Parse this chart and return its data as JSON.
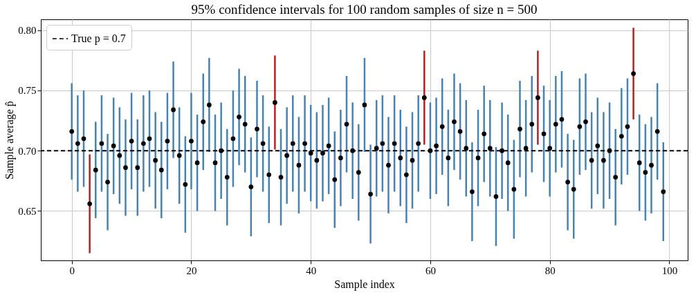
{
  "chart_data": {
    "type": "scatter",
    "title": "95% confidence intervals for 100 random samples of size n = 500",
    "xlabel": "Sample index",
    "ylabel": "Sample average p̂",
    "x": [
      0,
      1,
      2,
      3,
      4,
      5,
      6,
      7,
      8,
      9,
      10,
      11,
      12,
      13,
      14,
      15,
      16,
      17,
      18,
      19,
      20,
      21,
      22,
      23,
      24,
      25,
      26,
      27,
      28,
      29,
      30,
      31,
      32,
      33,
      34,
      35,
      36,
      37,
      38,
      39,
      40,
      41,
      42,
      43,
      44,
      45,
      46,
      47,
      48,
      49,
      50,
      51,
      52,
      53,
      54,
      55,
      56,
      57,
      58,
      59,
      60,
      61,
      62,
      63,
      64,
      65,
      66,
      67,
      68,
      69,
      70,
      71,
      72,
      73,
      74,
      75,
      76,
      77,
      78,
      79,
      80,
      81,
      82,
      83,
      84,
      85,
      86,
      87,
      88,
      89,
      90,
      91,
      92,
      93,
      94,
      95,
      96,
      97,
      98,
      99
    ],
    "series": [
      {
        "type": "bar",
        "base": [
          0.676,
          0.666,
          0.67,
          0.615,
          0.644,
          0.666,
          0.634,
          0.664,
          0.656,
          0.646,
          0.668,
          0.646,
          0.666,
          0.67,
          0.652,
          0.644,
          0.668,
          0.694,
          0.656,
          0.632,
          0.668,
          0.65,
          0.684,
          0.699,
          0.65,
          0.66,
          0.638,
          0.67,
          0.688,
          0.682,
          0.629,
          0.678,
          0.666,
          0.64,
          0.701,
          0.638,
          0.656,
          0.666,
          0.648,
          0.666,
          0.658,
          0.652,
          0.658,
          0.664,
          0.636,
          0.654,
          0.682,
          0.66,
          0.642,
          0.699,
          0.623,
          0.662,
          0.666,
          0.648,
          0.666,
          0.654,
          0.64,
          0.652,
          0.666,
          0.705,
          0.66,
          0.664,
          0.68,
          0.654,
          0.684,
          0.676,
          0.662,
          0.625,
          0.654,
          0.674,
          0.662,
          0.621,
          0.66,
          0.65,
          0.627,
          0.678,
          0.662,
          0.682,
          0.705,
          0.674,
          0.662,
          0.682,
          0.686,
          0.634,
          0.627,
          0.68,
          0.684,
          0.652,
          0.664,
          0.652,
          0.66,
          0.638,
          0.672,
          0.68,
          0.726,
          0.65,
          0.642,
          0.648,
          0.676,
          0.625
        ],
        "values": [
          0.08,
          0.08,
          0.08,
          0.082,
          0.08,
          0.08,
          0.08,
          0.08,
          0.08,
          0.08,
          0.08,
          0.08,
          0.08,
          0.08,
          0.08,
          0.08,
          0.08,
          0.08,
          0.08,
          0.08,
          0.08,
          0.08,
          0.08,
          0.078,
          0.08,
          0.08,
          0.08,
          0.08,
          0.08,
          0.08,
          0.082,
          0.08,
          0.08,
          0.08,
          0.078,
          0.08,
          0.08,
          0.08,
          0.08,
          0.08,
          0.08,
          0.08,
          0.08,
          0.08,
          0.08,
          0.08,
          0.08,
          0.08,
          0.08,
          0.078,
          0.082,
          0.08,
          0.08,
          0.08,
          0.08,
          0.08,
          0.08,
          0.08,
          0.08,
          0.078,
          0.08,
          0.08,
          0.08,
          0.08,
          0.08,
          0.08,
          0.08,
          0.082,
          0.08,
          0.08,
          0.08,
          0.082,
          0.08,
          0.08,
          0.082,
          0.08,
          0.08,
          0.08,
          0.078,
          0.08,
          0.08,
          0.08,
          0.08,
          0.08,
          0.082,
          0.08,
          0.08,
          0.08,
          0.08,
          0.08,
          0.08,
          0.08,
          0.08,
          0.08,
          0.076,
          0.08,
          0.08,
          0.08,
          0.08,
          0.082
        ],
        "colors": [
          "#4682b4",
          "#4682b4",
          "#4682b4",
          "#b22222",
          "#4682b4",
          "#4682b4",
          "#4682b4",
          "#4682b4",
          "#4682b4",
          "#4682b4",
          "#4682b4",
          "#4682b4",
          "#4682b4",
          "#4682b4",
          "#4682b4",
          "#4682b4",
          "#4682b4",
          "#4682b4",
          "#4682b4",
          "#4682b4",
          "#4682b4",
          "#4682b4",
          "#4682b4",
          "#4682b4",
          "#4682b4",
          "#4682b4",
          "#4682b4",
          "#4682b4",
          "#4682b4",
          "#4682b4",
          "#4682b4",
          "#4682b4",
          "#4682b4",
          "#4682b4",
          "#b22222",
          "#4682b4",
          "#4682b4",
          "#4682b4",
          "#4682b4",
          "#4682b4",
          "#4682b4",
          "#4682b4",
          "#4682b4",
          "#4682b4",
          "#4682b4",
          "#4682b4",
          "#4682b4",
          "#4682b4",
          "#4682b4",
          "#4682b4",
          "#4682b4",
          "#4682b4",
          "#4682b4",
          "#4682b4",
          "#4682b4",
          "#4682b4",
          "#4682b4",
          "#4682b4",
          "#4682b4",
          "#b22222",
          "#4682b4",
          "#4682b4",
          "#4682b4",
          "#4682b4",
          "#4682b4",
          "#4682b4",
          "#4682b4",
          "#4682b4",
          "#4682b4",
          "#4682b4",
          "#4682b4",
          "#4682b4",
          "#4682b4",
          "#4682b4",
          "#4682b4",
          "#4682b4",
          "#4682b4",
          "#4682b4",
          "#b22222",
          "#4682b4",
          "#4682b4",
          "#4682b4",
          "#4682b4",
          "#4682b4",
          "#4682b4",
          "#4682b4",
          "#4682b4",
          "#4682b4",
          "#4682b4",
          "#4682b4",
          "#4682b4",
          "#4682b4",
          "#4682b4",
          "#4682b4",
          "#b22222",
          "#4682b4",
          "#4682b4",
          "#4682b4",
          "#4682b4",
          "#4682b4"
        ]
      },
      {
        "color": "#000000",
        "values": [
          0.716,
          0.706,
          0.71,
          0.656,
          0.684,
          0.706,
          0.674,
          0.704,
          0.696,
          0.686,
          0.708,
          0.686,
          0.706,
          0.71,
          0.692,
          0.684,
          0.708,
          0.734,
          0.696,
          0.672,
          0.708,
          0.69,
          0.724,
          0.738,
          0.69,
          0.7,
          0.678,
          0.71,
          0.728,
          0.722,
          0.67,
          0.718,
          0.706,
          0.68,
          0.74,
          0.678,
          0.696,
          0.706,
          0.688,
          0.706,
          0.698,
          0.692,
          0.698,
          0.704,
          0.676,
          0.694,
          0.722,
          0.7,
          0.682,
          0.738,
          0.664,
          0.702,
          0.706,
          0.688,
          0.706,
          0.694,
          0.68,
          0.692,
          0.706,
          0.744,
          0.7,
          0.704,
          0.72,
          0.694,
          0.724,
          0.716,
          0.702,
          0.666,
          0.694,
          0.714,
          0.702,
          0.662,
          0.7,
          0.69,
          0.668,
          0.718,
          0.702,
          0.722,
          0.744,
          0.714,
          0.702,
          0.722,
          0.726,
          0.674,
          0.668,
          0.72,
          0.724,
          0.692,
          0.704,
          0.692,
          0.7,
          0.678,
          0.712,
          0.72,
          0.764,
          0.69,
          0.682,
          0.688,
          0.716,
          0.666
        ]
      }
    ],
    "xlim": [
      -4.6,
      102.5
    ],
    "xticks": [
      0,
      20,
      40,
      60,
      80,
      100
    ],
    "ylim": [
      0.609,
      0.809
    ],
    "yticks": [
      0.65,
      {
        "value": 0.7,
        "label": "0.70"
      },
      0.75,
      {
        "value": 0.8,
        "label": "0.80"
      }
    ],
    "ref_lines": [
      {
        "axis": "y",
        "value": 0.7,
        "label": "True p = 0.7",
        "color": "#000000",
        "line_style": "dashed"
      }
    ],
    "grid": true,
    "legend": "top left",
    "marker": "circle"
  }
}
